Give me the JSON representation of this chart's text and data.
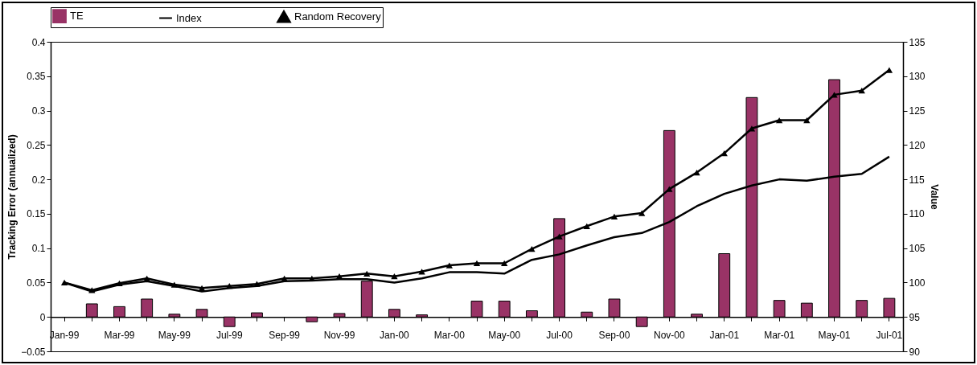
{
  "chart_data": {
    "type": "bar",
    "ylabel": "Tracking Error (annualized)",
    "y2label": "Value",
    "legend": "top",
    "grid": false,
    "categories": [
      "Jan-99",
      null,
      "Mar-99",
      null,
      "May-99",
      null,
      "Jul-99",
      null,
      "Sep-99",
      null,
      "Nov-99",
      null,
      "Jan-00",
      null,
      "Mar-00",
      null,
      "May-00",
      null,
      "Jul-00",
      null,
      "Sep-00",
      null,
      "Nov-00",
      null,
      "Jan-01",
      null,
      "Mar-01",
      null,
      "May-01",
      null,
      "Jul-01"
    ],
    "ylim": [
      -0.05,
      0.4
    ],
    "yticks": [
      -0.05,
      0,
      0.05,
      0.1,
      0.15,
      0.2,
      0.25,
      0.3,
      0.35,
      0.4
    ],
    "y2lim": [
      90,
      135
    ],
    "y2ticks": [
      90,
      95,
      100,
      105,
      110,
      115,
      120,
      125,
      130,
      135
    ],
    "series": [
      {
        "name": "TE",
        "color": "#993366",
        "values": [
          0,
          0.019,
          0.015,
          0.026,
          0.004,
          0.011,
          -0.014,
          0.006,
          0,
          -0.007,
          0.005,
          0.052,
          0.011,
          0.003,
          0,
          0.023,
          0.023,
          0.009,
          0.143,
          0.007,
          0.026,
          -0.014,
          0.271,
          0.004,
          0.092,
          0.319,
          0.024,
          0.02,
          0.345,
          0.024,
          0.027
        ]
      },
      {
        "name": "Index",
        "type": "line",
        "axis": "y2",
        "color": "#000000",
        "marker": "none",
        "values": [
          100,
          98.7,
          99.7,
          100.2,
          99.5,
          98.7,
          99.2,
          99.5,
          100.2,
          100.3,
          100.5,
          100.5,
          100,
          100.6,
          101.5,
          101.5,
          101.3,
          103.3,
          104.1,
          105.4,
          106.6,
          107.2,
          108.8,
          111.1,
          112.9,
          114.1,
          115,
          114.8,
          115.4,
          115.8,
          118.3
        ]
      },
      {
        "name": "Random Recovery",
        "type": "line",
        "axis": "y2",
        "color": "#000000",
        "marker": "triangle",
        "values": [
          100,
          98.9,
          99.9,
          100.6,
          99.7,
          99.2,
          99.5,
          99.8,
          100.6,
          100.6,
          100.9,
          101.3,
          100.9,
          101.6,
          102.5,
          102.8,
          102.8,
          104.9,
          106.7,
          108.2,
          109.6,
          110.1,
          113.6,
          116,
          118.8,
          122.4,
          123.6,
          123.6,
          127.3,
          127.9,
          130.9
        ]
      }
    ]
  }
}
